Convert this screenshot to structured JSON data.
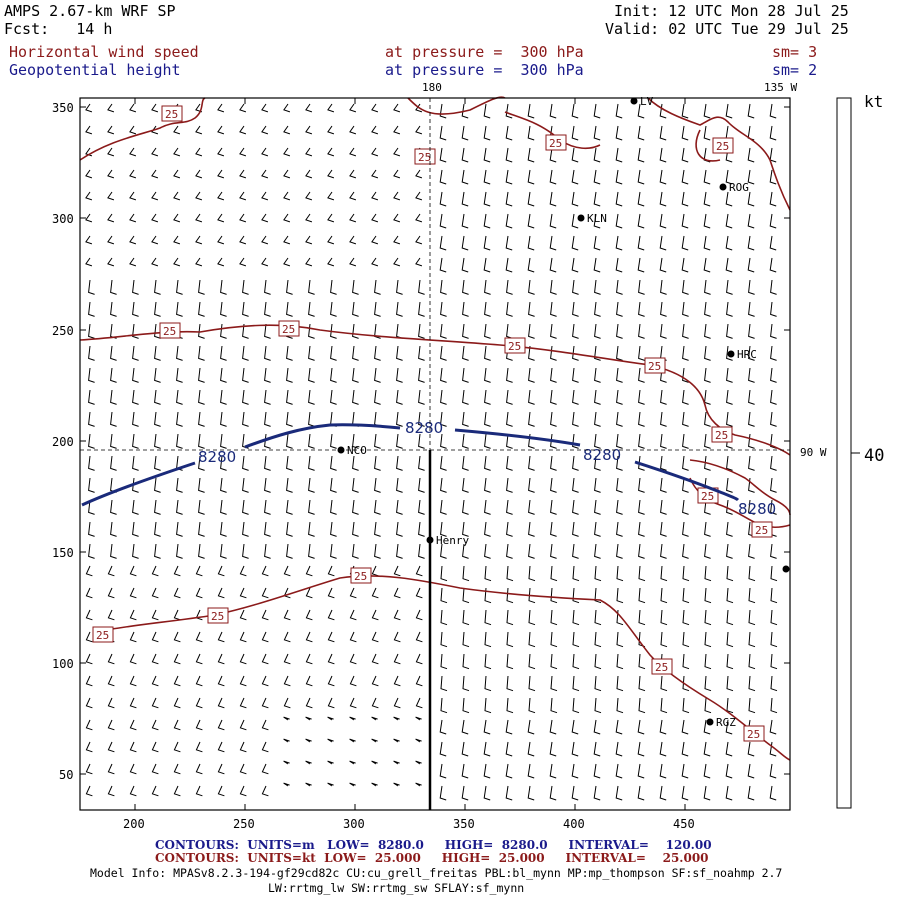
{
  "header": {
    "model": "AMPS 2.67-km WRF SP",
    "fcst": "Fcst:   14 h",
    "init": "Init: 12 UTC Mon 28 Jul 25",
    "valid": "Valid: 02 UTC Tue 29 Jul 25",
    "field1_name": "Horizontal wind speed",
    "field1_level": "at pressure =  300 hPa",
    "field1_sm": "sm= 3",
    "field2_name": "Geopotential height",
    "field2_level": "at pressure =  300 hPa",
    "field2_sm": "sm= 2"
  },
  "map": {
    "x_ticks": [
      "200",
      "250",
      "300",
      "350",
      "400",
      "450"
    ],
    "y_ticks": [
      "350",
      "300",
      "250",
      "200",
      "150",
      "100",
      "50"
    ],
    "lon_label_180": "180",
    "lon_label_135w": "135 W",
    "lon_label_90w": "90 W",
    "stations": [
      {
        "id": "LV",
        "label": "LV"
      },
      {
        "id": "ROG",
        "label": "ROG"
      },
      {
        "id": "KLN",
        "label": "KLN"
      },
      {
        "id": "HRC",
        "label": "HRC"
      },
      {
        "id": "NCO",
        "label": "NCO"
      },
      {
        "id": "Henry",
        "label": "Henry"
      },
      {
        "id": "RGZ",
        "label": "RGZ"
      }
    ],
    "height_contour_label": "8280",
    "speed_contour_label": "25",
    "colors": {
      "speed_contour": "#8b1a1a",
      "height_contour": "#1a2a7a",
      "barb": "#000000"
    }
  },
  "colorbar": {
    "unit": "kt",
    "value": "40"
  },
  "footer": {
    "contours1": "CONTOURS:  UNITS=m   LOW=  8280.0     HIGH=  8280.0     INTERVAL=    120.00",
    "contours2": "CONTOURS:  UNITS=kt  LOW=  25.000     HIGH=  25.000     INTERVAL=    25.000",
    "model_info": "Model Info: MPASv8.2.3-194-gf29cd82c CU:cu_grell_freitas PBL:bl_mynn MP:mp_thompson SF:sf_noahmp 2.7",
    "model_info2": "LW:rrtmg_lw SW:rrtmg_sw SFLAY:sf_mynn"
  }
}
